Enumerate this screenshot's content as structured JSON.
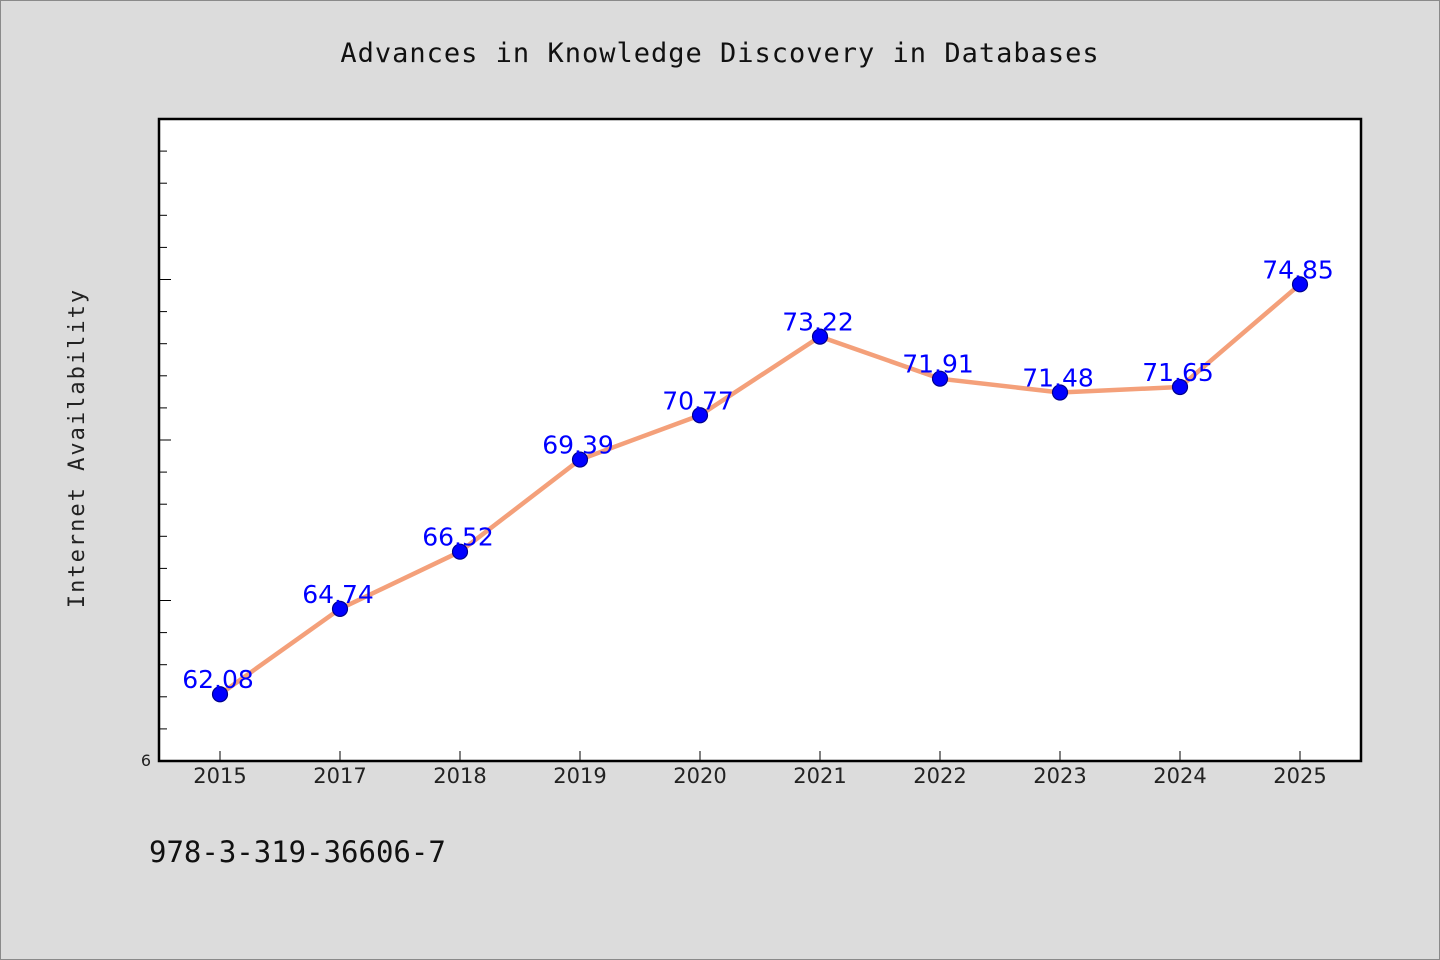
{
  "chart_data": {
    "type": "line",
    "title": "Advances in Knowledge Discovery in Databases",
    "ylabel": "Internet Availability",
    "xlabel": "",
    "categories": [
      "2015",
      "2017",
      "2018",
      "2019",
      "2020",
      "2021",
      "2022",
      "2023",
      "2024",
      "2025"
    ],
    "values": [
      62.08,
      64.74,
      66.52,
      69.39,
      70.77,
      73.22,
      71.91,
      71.48,
      71.65,
      74.85
    ],
    "data_labels": [
      "62.08",
      "64.74",
      "66.52",
      "69.39",
      "70.77",
      "73.22",
      "71.91",
      "71.48",
      "71.65",
      "74.85"
    ],
    "ylim": [
      60,
      80
    ],
    "y_tick_labels": [
      "6"
    ],
    "grid": false,
    "legend": "none",
    "colors": {
      "line": "#f4a07a",
      "marker": "#0000ff",
      "data_label": "#0000ff",
      "plot_background": "#ffffff",
      "figure_background": "#dcdcdc"
    }
  },
  "footer": {
    "isbn": "978-3-319-36606-7"
  }
}
